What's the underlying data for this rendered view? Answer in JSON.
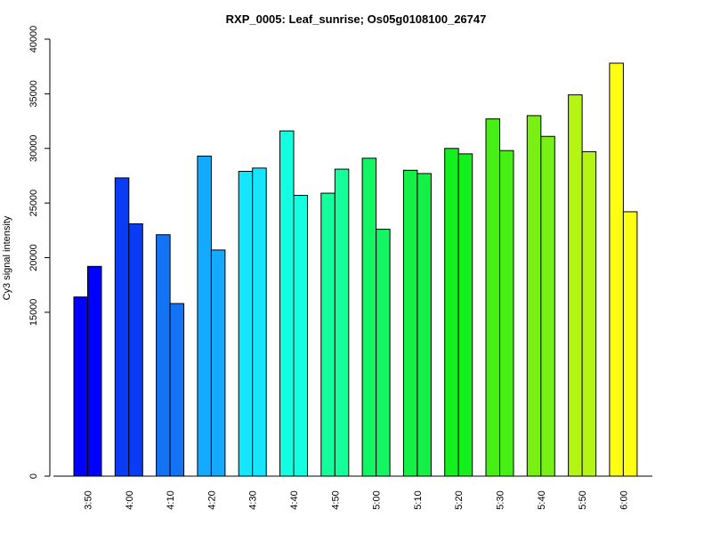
{
  "chart_data": {
    "type": "bar",
    "title": "RXP_0005: Leaf_sunrise; Os05g0108100_26747",
    "xlabel": "",
    "ylabel": "Cy3 signal intensity",
    "ylim": [
      0,
      40000
    ],
    "yticks": [
      0,
      15000,
      20000,
      25000,
      30000,
      35000,
      40000
    ],
    "grid": false,
    "legend": "none",
    "categories": [
      "3:50",
      "4:00",
      "4:10",
      "4:20",
      "4:30",
      "4:40",
      "4:50",
      "5:00",
      "5:10",
      "5:20",
      "5:30",
      "5:40",
      "5:50",
      "6:00"
    ],
    "group_colors": [
      "#0000ff",
      "#0a3cf5",
      "#1473f5",
      "#14aaff",
      "#14e6ff",
      "#14ffe1",
      "#14ff9b",
      "#14f564",
      "#14f046",
      "#14f01e",
      "#46f014",
      "#78f014",
      "#b4f514",
      "#ffff14"
    ],
    "series": [
      {
        "values": [
          16400,
          27300,
          22100,
          29300,
          27900,
          31600,
          25900,
          29100,
          28000,
          30000,
          32700,
          33000,
          34900,
          37800
        ]
      },
      {
        "values": [
          19200,
          23100,
          15800,
          20700,
          28200,
          25700,
          28100,
          22600,
          27700,
          29500,
          29800,
          31100,
          29700,
          24200
        ]
      }
    ]
  }
}
